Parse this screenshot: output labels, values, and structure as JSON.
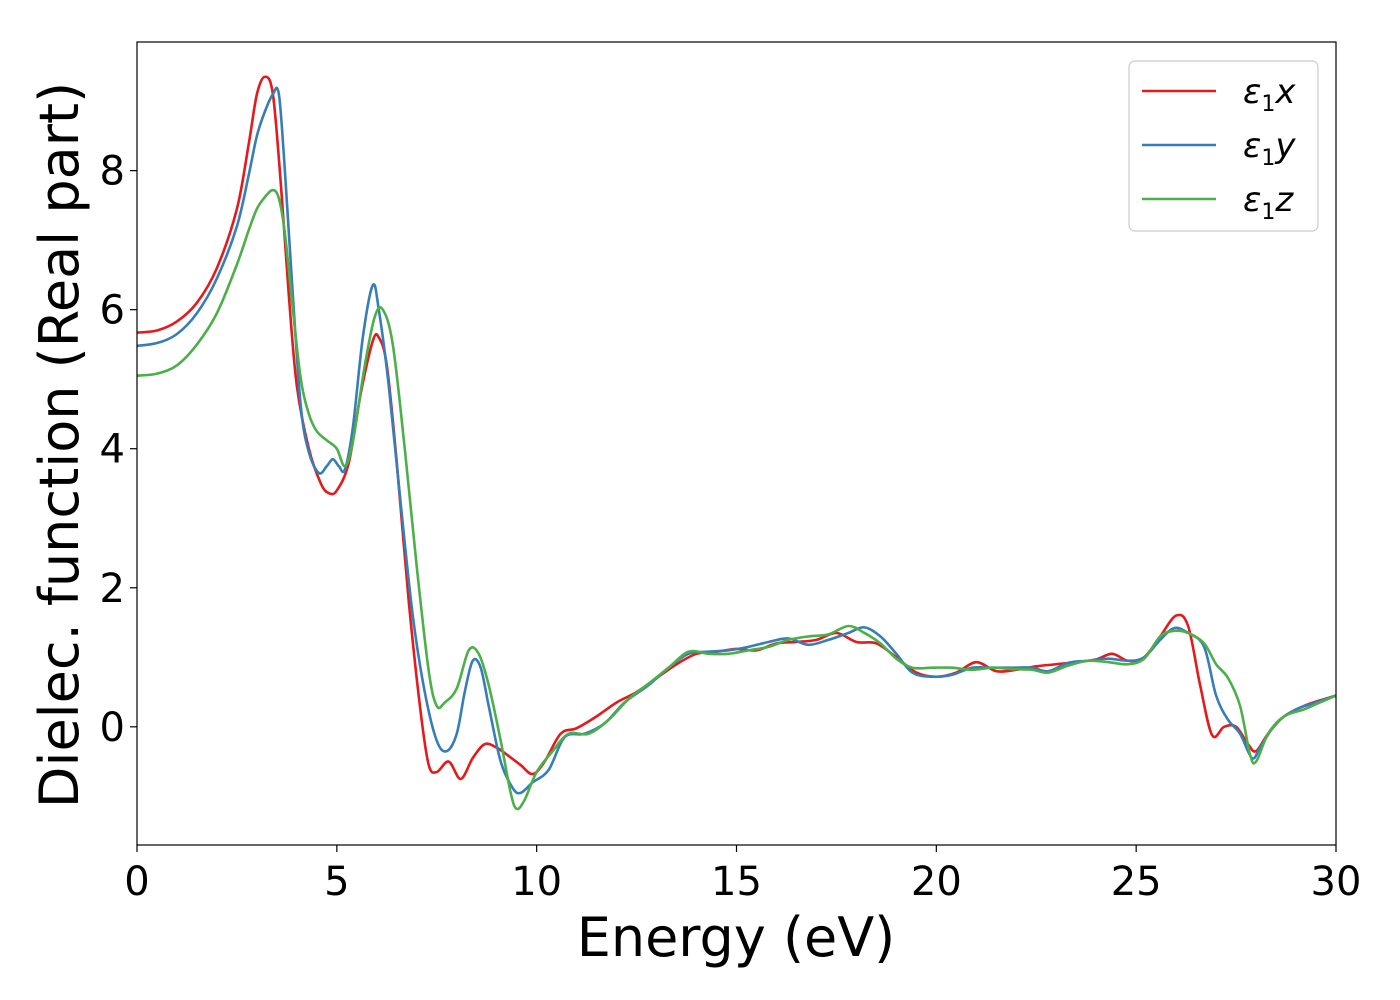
{
  "chart_data": {
    "type": "line",
    "xlabel": "Energy (eV)",
    "ylabel": "Dielec. function (Real part)",
    "xlim": [
      0,
      30
    ],
    "ylim": [
      -1.7,
      9.85
    ],
    "xticks": [
      0,
      5,
      10,
      15,
      20,
      25,
      30
    ],
    "yticks": [
      0,
      2,
      4,
      6,
      8
    ],
    "grid": false,
    "legend_position": "top-right",
    "series": [
      {
        "name": "ε1x",
        "legend_base": "ε",
        "legend_sub": "1",
        "legend_tail": "x",
        "color": "#e41a1c",
        "points": [
          [
            0,
            5.67
          ],
          [
            0.5,
            5.7
          ],
          [
            1.0,
            5.83
          ],
          [
            1.5,
            6.1
          ],
          [
            2.0,
            6.6
          ],
          [
            2.5,
            7.45
          ],
          [
            2.8,
            8.4
          ],
          [
            3.0,
            9.1
          ],
          [
            3.2,
            9.35
          ],
          [
            3.4,
            9.1
          ],
          [
            3.6,
            7.8
          ],
          [
            3.8,
            6.2
          ],
          [
            4.0,
            4.9
          ],
          [
            4.3,
            4.0
          ],
          [
            4.6,
            3.5
          ],
          [
            4.8,
            3.36
          ],
          [
            5.0,
            3.4
          ],
          [
            5.3,
            3.8
          ],
          [
            5.6,
            4.8
          ],
          [
            5.9,
            5.55
          ],
          [
            6.05,
            5.6
          ],
          [
            6.25,
            5.2
          ],
          [
            6.5,
            3.8
          ],
          [
            6.8,
            1.8
          ],
          [
            7.1,
            0.2
          ],
          [
            7.3,
            -0.55
          ],
          [
            7.5,
            -0.65
          ],
          [
            7.8,
            -0.5
          ],
          [
            8.1,
            -0.75
          ],
          [
            8.4,
            -0.45
          ],
          [
            8.7,
            -0.25
          ],
          [
            9.0,
            -0.3
          ],
          [
            9.3,
            -0.42
          ],
          [
            9.6,
            -0.55
          ],
          [
            9.9,
            -0.68
          ],
          [
            10.2,
            -0.5
          ],
          [
            10.6,
            -0.1
          ],
          [
            11.0,
            -0.02
          ],
          [
            11.5,
            0.15
          ],
          [
            12.0,
            0.35
          ],
          [
            12.5,
            0.5
          ],
          [
            13.0,
            0.7
          ],
          [
            13.5,
            0.9
          ],
          [
            14.0,
            1.05
          ],
          [
            14.5,
            1.08
          ],
          [
            15.0,
            1.12
          ],
          [
            15.5,
            1.1
          ],
          [
            16.0,
            1.2
          ],
          [
            16.5,
            1.22
          ],
          [
            17.0,
            1.25
          ],
          [
            17.5,
            1.35
          ],
          [
            18.0,
            1.22
          ],
          [
            18.5,
            1.2
          ],
          [
            19.0,
            1.0
          ],
          [
            19.5,
            0.78
          ],
          [
            20.0,
            0.72
          ],
          [
            20.5,
            0.78
          ],
          [
            21.0,
            0.93
          ],
          [
            21.5,
            0.8
          ],
          [
            22.0,
            0.82
          ],
          [
            22.5,
            0.87
          ],
          [
            23.0,
            0.9
          ],
          [
            23.5,
            0.93
          ],
          [
            24.0,
            0.97
          ],
          [
            24.4,
            1.05
          ],
          [
            24.8,
            0.95
          ],
          [
            25.2,
            1.0
          ],
          [
            25.6,
            1.3
          ],
          [
            26.0,
            1.6
          ],
          [
            26.3,
            1.45
          ],
          [
            26.6,
            0.6
          ],
          [
            26.9,
            -0.12
          ],
          [
            27.2,
            0.0
          ],
          [
            27.5,
            0.0
          ],
          [
            27.8,
            -0.25
          ],
          [
            28.0,
            -0.35
          ],
          [
            28.3,
            -0.1
          ],
          [
            28.7,
            0.15
          ],
          [
            29.2,
            0.3
          ],
          [
            29.6,
            0.38
          ],
          [
            30.0,
            0.45
          ]
        ]
      },
      {
        "name": "ε1y",
        "legend_base": "ε",
        "legend_sub": "1",
        "legend_tail": "y",
        "color": "#377eb8",
        "points": [
          [
            0,
            5.48
          ],
          [
            0.5,
            5.52
          ],
          [
            1.0,
            5.65
          ],
          [
            1.5,
            5.95
          ],
          [
            2.0,
            6.45
          ],
          [
            2.5,
            7.2
          ],
          [
            2.8,
            7.95
          ],
          [
            3.0,
            8.5
          ],
          [
            3.2,
            8.85
          ],
          [
            3.4,
            9.1
          ],
          [
            3.55,
            9.1
          ],
          [
            3.7,
            8.0
          ],
          [
            3.9,
            6.2
          ],
          [
            4.1,
            4.6
          ],
          [
            4.3,
            3.95
          ],
          [
            4.55,
            3.65
          ],
          [
            4.75,
            3.75
          ],
          [
            4.9,
            3.85
          ],
          [
            5.05,
            3.75
          ],
          [
            5.2,
            3.7
          ],
          [
            5.4,
            4.3
          ],
          [
            5.65,
            5.6
          ],
          [
            5.9,
            6.35
          ],
          [
            6.05,
            6.0
          ],
          [
            6.3,
            4.9
          ],
          [
            6.6,
            3.2
          ],
          [
            6.9,
            1.6
          ],
          [
            7.2,
            0.5
          ],
          [
            7.5,
            -0.2
          ],
          [
            7.75,
            -0.35
          ],
          [
            8.0,
            -0.1
          ],
          [
            8.2,
            0.5
          ],
          [
            8.4,
            0.95
          ],
          [
            8.6,
            0.85
          ],
          [
            8.8,
            0.3
          ],
          [
            9.1,
            -0.5
          ],
          [
            9.4,
            -0.88
          ],
          [
            9.6,
            -0.95
          ],
          [
            9.9,
            -0.8
          ],
          [
            10.3,
            -0.62
          ],
          [
            10.7,
            -0.15
          ],
          [
            11.2,
            -0.1
          ],
          [
            11.7,
            0.05
          ],
          [
            12.2,
            0.35
          ],
          [
            12.8,
            0.6
          ],
          [
            13.3,
            0.85
          ],
          [
            13.8,
            1.05
          ],
          [
            14.3,
            1.08
          ],
          [
            14.8,
            1.1
          ],
          [
            15.3,
            1.15
          ],
          [
            15.8,
            1.22
          ],
          [
            16.3,
            1.27
          ],
          [
            16.8,
            1.18
          ],
          [
            17.3,
            1.25
          ],
          [
            17.8,
            1.35
          ],
          [
            18.2,
            1.43
          ],
          [
            18.6,
            1.3
          ],
          [
            19.0,
            1.05
          ],
          [
            19.4,
            0.78
          ],
          [
            19.9,
            0.72
          ],
          [
            20.4,
            0.75
          ],
          [
            20.9,
            0.85
          ],
          [
            21.4,
            0.85
          ],
          [
            21.9,
            0.85
          ],
          [
            22.4,
            0.85
          ],
          [
            22.8,
            0.8
          ],
          [
            23.3,
            0.92
          ],
          [
            23.8,
            0.95
          ],
          [
            24.3,
            0.98
          ],
          [
            24.8,
            0.95
          ],
          [
            25.2,
            1.0
          ],
          [
            25.6,
            1.25
          ],
          [
            25.95,
            1.42
          ],
          [
            26.3,
            1.35
          ],
          [
            26.7,
            1.15
          ],
          [
            27.0,
            0.45
          ],
          [
            27.3,
            0.1
          ],
          [
            27.6,
            -0.1
          ],
          [
            27.9,
            -0.45
          ],
          [
            28.1,
            -0.3
          ],
          [
            28.5,
            0.05
          ],
          [
            29.0,
            0.25
          ],
          [
            29.5,
            0.35
          ],
          [
            30.0,
            0.45
          ]
        ]
      },
      {
        "name": "ε1z",
        "legend_base": "ε",
        "legend_sub": "1",
        "legend_tail": "z",
        "color": "#4daf4a",
        "points": [
          [
            0,
            5.05
          ],
          [
            0.5,
            5.08
          ],
          [
            1.0,
            5.2
          ],
          [
            1.5,
            5.5
          ],
          [
            2.0,
            5.95
          ],
          [
            2.5,
            6.65
          ],
          [
            2.8,
            7.15
          ],
          [
            3.0,
            7.45
          ],
          [
            3.2,
            7.62
          ],
          [
            3.4,
            7.72
          ],
          [
            3.55,
            7.6
          ],
          [
            3.7,
            7.1
          ],
          [
            3.9,
            6.0
          ],
          [
            4.1,
            5.0
          ],
          [
            4.3,
            4.5
          ],
          [
            4.5,
            4.25
          ],
          [
            4.75,
            4.12
          ],
          [
            5.0,
            4.0
          ],
          [
            5.2,
            3.75
          ],
          [
            5.4,
            4.1
          ],
          [
            5.7,
            5.2
          ],
          [
            5.95,
            5.9
          ],
          [
            6.15,
            6.0
          ],
          [
            6.4,
            5.5
          ],
          [
            6.7,
            4.0
          ],
          [
            7.0,
            2.3
          ],
          [
            7.3,
            0.8
          ],
          [
            7.5,
            0.3
          ],
          [
            7.7,
            0.35
          ],
          [
            8.0,
            0.55
          ],
          [
            8.3,
            1.1
          ],
          [
            8.55,
            1.05
          ],
          [
            8.8,
            0.6
          ],
          [
            9.1,
            -0.2
          ],
          [
            9.35,
            -0.95
          ],
          [
            9.5,
            -1.18
          ],
          [
            9.7,
            -1.05
          ],
          [
            10.0,
            -0.65
          ],
          [
            10.4,
            -0.35
          ],
          [
            10.8,
            -0.1
          ],
          [
            11.3,
            -0.1
          ],
          [
            11.8,
            0.1
          ],
          [
            12.3,
            0.4
          ],
          [
            12.8,
            0.62
          ],
          [
            13.3,
            0.85
          ],
          [
            13.8,
            1.08
          ],
          [
            14.3,
            1.05
          ],
          [
            14.8,
            1.05
          ],
          [
            15.3,
            1.1
          ],
          [
            15.8,
            1.15
          ],
          [
            16.3,
            1.25
          ],
          [
            16.8,
            1.3
          ],
          [
            17.3,
            1.33
          ],
          [
            17.8,
            1.45
          ],
          [
            18.2,
            1.35
          ],
          [
            18.6,
            1.2
          ],
          [
            19.0,
            0.98
          ],
          [
            19.4,
            0.85
          ],
          [
            19.9,
            0.85
          ],
          [
            20.4,
            0.85
          ],
          [
            20.9,
            0.82
          ],
          [
            21.4,
            0.85
          ],
          [
            21.9,
            0.83
          ],
          [
            22.4,
            0.82
          ],
          [
            22.8,
            0.78
          ],
          [
            23.3,
            0.88
          ],
          [
            23.8,
            0.95
          ],
          [
            24.3,
            0.93
          ],
          [
            24.8,
            0.9
          ],
          [
            25.2,
            0.98
          ],
          [
            25.6,
            1.3
          ],
          [
            25.95,
            1.38
          ],
          [
            26.3,
            1.35
          ],
          [
            26.7,
            1.2
          ],
          [
            27.0,
            0.9
          ],
          [
            27.3,
            0.7
          ],
          [
            27.6,
            0.3
          ],
          [
            27.85,
            -0.4
          ],
          [
            28.0,
            -0.5
          ],
          [
            28.3,
            -0.1
          ],
          [
            28.7,
            0.15
          ],
          [
            29.2,
            0.25
          ],
          [
            29.6,
            0.35
          ],
          [
            30.0,
            0.45
          ]
        ]
      }
    ]
  }
}
